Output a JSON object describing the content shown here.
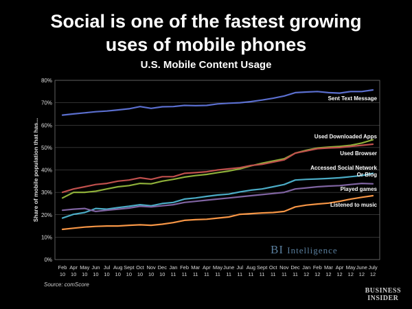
{
  "header": {
    "title_line1": "Social is one of the fastest growing",
    "title_line2": "uses of mobile phones",
    "subtitle": "U.S. Mobile Content Usage"
  },
  "source": "Source: comScore",
  "brand": {
    "watermark_main": "BI",
    "watermark_rest": "Intelligence",
    "corner_line1": "BUSINESS",
    "corner_line2": "INSIDER"
  },
  "chart_data": {
    "type": "line",
    "title": "U.S. Mobile Content Usage",
    "ylabel": "Share of mobile population that has...",
    "ylim": [
      0,
      80
    ],
    "yticks": [
      "0%",
      "10%",
      "20%",
      "30%",
      "40%",
      "50%",
      "60%",
      "70%",
      "80%"
    ],
    "grid": true,
    "x_months": [
      "Feb",
      "Apr",
      "May",
      "Jun",
      "Jul",
      "Aug",
      "Sept",
      "Oct",
      "Nov",
      "Dec",
      "Jan",
      "Feb",
      "Mar",
      "Apr",
      "May",
      "June",
      "Jul",
      "Aug",
      "Sept",
      "Oct",
      "Nov",
      "Dec",
      "Jan",
      "Feb",
      "Mar",
      "Apr",
      "May",
      "June",
      "July"
    ],
    "x_years": [
      "10",
      "10",
      "10",
      "10",
      "10",
      "10",
      "10",
      "10",
      "10",
      "10",
      "11",
      "11",
      "11",
      "11",
      "11",
      "11",
      "11",
      "11",
      "11",
      "11",
      "11",
      "11",
      "12",
      "12",
      "12",
      "12",
      "12",
      "12",
      "12"
    ],
    "series": [
      {
        "name": "Sent Text Message",
        "color": "#5b6fcf",
        "values": [
          64.5,
          65.0,
          65.5,
          66.0,
          66.3,
          66.8,
          67.3,
          68.3,
          67.5,
          68.2,
          68.3,
          68.8,
          68.7,
          68.8,
          69.5,
          69.8,
          70.0,
          70.5,
          71.2,
          72.0,
          73.0,
          74.5,
          74.8,
          75.0,
          74.5,
          74.3,
          75.0,
          75.0,
          75.7
        ]
      },
      {
        "name": "Used Downloaded Apps",
        "color": "#8fb03a",
        "values": [
          27.5,
          30.0,
          30.0,
          30.5,
          31.5,
          32.5,
          33.0,
          34.0,
          33.8,
          35.0,
          35.8,
          36.8,
          37.5,
          38.0,
          38.8,
          39.5,
          40.5,
          41.8,
          43.0,
          44.0,
          45.0,
          47.5,
          48.8,
          49.8,
          50.2,
          50.5,
          51.0,
          52.0,
          53.5
        ]
      },
      {
        "name": "Used Browser",
        "color": "#c0504d",
        "values": [
          30.0,
          31.5,
          32.5,
          33.5,
          34.0,
          35.0,
          35.5,
          36.5,
          35.8,
          37.0,
          37.0,
          38.5,
          38.8,
          39.2,
          40.0,
          40.5,
          41.0,
          42.0,
          42.5,
          43.5,
          44.5,
          47.5,
          48.5,
          49.5,
          49.8,
          50.0,
          50.5,
          51.0,
          51.5
        ]
      },
      {
        "name": "Accessed Social Network Or Blog",
        "color": "#4bacc6",
        "values": [
          18.5,
          20.2,
          21.0,
          22.8,
          22.5,
          23.2,
          23.8,
          24.5,
          24.0,
          25.0,
          25.5,
          27.0,
          27.5,
          28.2,
          28.8,
          29.2,
          30.2,
          31.0,
          31.5,
          32.5,
          33.5,
          35.5,
          35.8,
          36.0,
          36.2,
          36.5,
          37.0,
          37.5,
          38.5
        ]
      },
      {
        "name": "Played games",
        "color": "#8064a2",
        "values": [
          22.0,
          22.5,
          22.8,
          21.5,
          22.0,
          22.5,
          23.0,
          23.8,
          23.5,
          24.0,
          24.5,
          25.5,
          26.0,
          26.5,
          27.0,
          27.5,
          28.0,
          28.5,
          29.0,
          29.5,
          30.0,
          31.5,
          32.0,
          32.5,
          32.8,
          33.0,
          33.5,
          34.0,
          33.8
        ]
      },
      {
        "name": "Listened to music",
        "color": "#f79646",
        "values": [
          13.5,
          14.0,
          14.5,
          14.8,
          15.0,
          15.0,
          15.3,
          15.5,
          15.3,
          15.8,
          16.5,
          17.5,
          17.8,
          18.0,
          18.5,
          19.0,
          20.2,
          20.5,
          20.8,
          21.0,
          21.5,
          23.5,
          24.3,
          24.8,
          25.2,
          26.0,
          27.0,
          27.8,
          28.5
        ]
      }
    ],
    "annotations": [
      {
        "text": "Sent Text Message",
        "anchor_value": 72.0
      },
      {
        "text": "Used Downloaded Apps",
        "anchor_value": 55.0
      },
      {
        "text": "Used Browser",
        "anchor_value": 47.5
      },
      {
        "text": "Accessed Social Network",
        "anchor_value": 41.0
      },
      {
        "text": "Or Blog",
        "anchor_value": 38.0
      },
      {
        "text": "Played games",
        "anchor_value": 31.5
      },
      {
        "text": "Listened to music",
        "anchor_value": 24.5
      }
    ]
  }
}
